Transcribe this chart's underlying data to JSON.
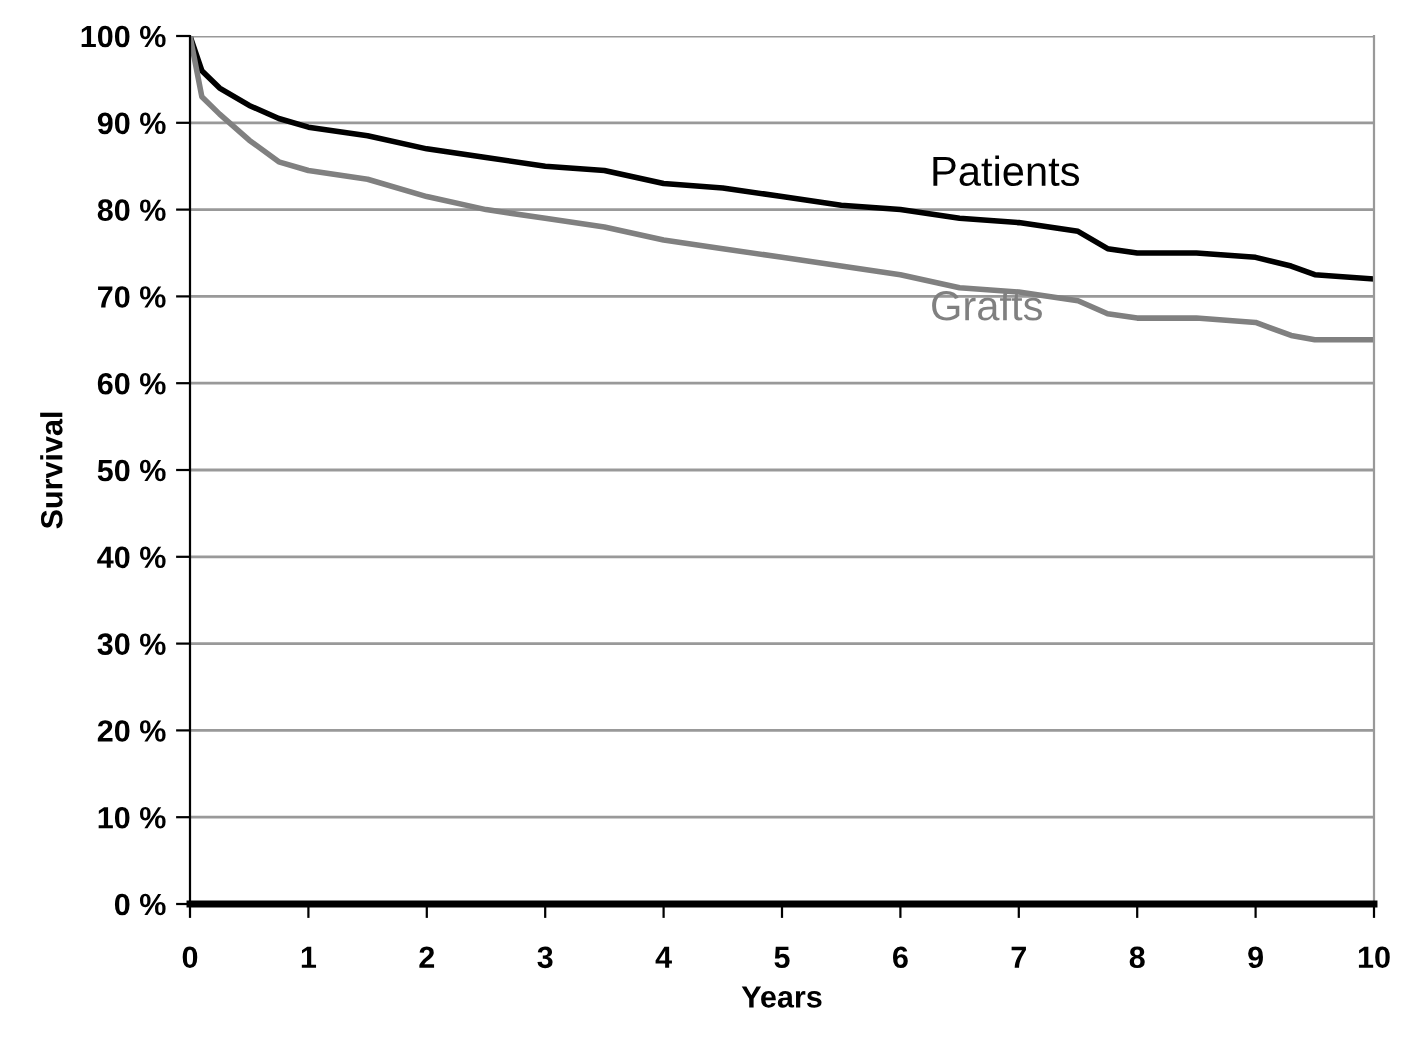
{
  "chart_data": {
    "type": "line",
    "xlabel": "Years",
    "ylabel": "Survival",
    "xlim": [
      0,
      10
    ],
    "xticks": [
      0,
      1,
      2,
      3,
      4,
      5,
      6,
      7,
      8,
      9,
      10
    ],
    "ylim": [
      0,
      100
    ],
    "yticks": [
      {
        "value": 0,
        "label": "0 %"
      },
      {
        "value": 10,
        "label": "10 %"
      },
      {
        "value": 20,
        "label": "20 %"
      },
      {
        "value": 30,
        "label": "30 %"
      },
      {
        "value": 40,
        "label": "40 %"
      },
      {
        "value": 50,
        "label": "50 %"
      },
      {
        "value": 60,
        "label": "60 %"
      },
      {
        "value": 70,
        "label": "70 %"
      },
      {
        "value": 80,
        "label": "80 %"
      },
      {
        "value": 90,
        "label": "90 %"
      },
      {
        "value": 100,
        "label": "100 %"
      }
    ],
    "grid": "y",
    "legend": false,
    "marker": "none",
    "line_style": "solid",
    "x": [
      0,
      0.1,
      0.25,
      0.5,
      0.75,
      1,
      1.5,
      2,
      2.5,
      3,
      3.5,
      4,
      4.5,
      5,
      5.5,
      6,
      6.5,
      7,
      7.5,
      7.75,
      8,
      8.5,
      9,
      9.3,
      9.5,
      10
    ],
    "series": [
      {
        "name": "Patients",
        "color": "#000000",
        "values": [
          100,
          96,
          94,
          92,
          90.5,
          89.5,
          88.5,
          87,
          86,
          85,
          84.5,
          83,
          82.5,
          81.5,
          80.5,
          80,
          79,
          78.5,
          77.5,
          75.5,
          75,
          75,
          74.5,
          73.5,
          72.5,
          72
        ]
      },
      {
        "name": "Grafts",
        "color": "#808080",
        "values": [
          100,
          93,
          91,
          88,
          85.5,
          84.5,
          83.5,
          81.5,
          80,
          79,
          78,
          76.5,
          75.5,
          74.5,
          73.5,
          72.5,
          71,
          70.5,
          69.5,
          68,
          67.5,
          67.5,
          67,
          65.5,
          65,
          65
        ]
      }
    ]
  }
}
